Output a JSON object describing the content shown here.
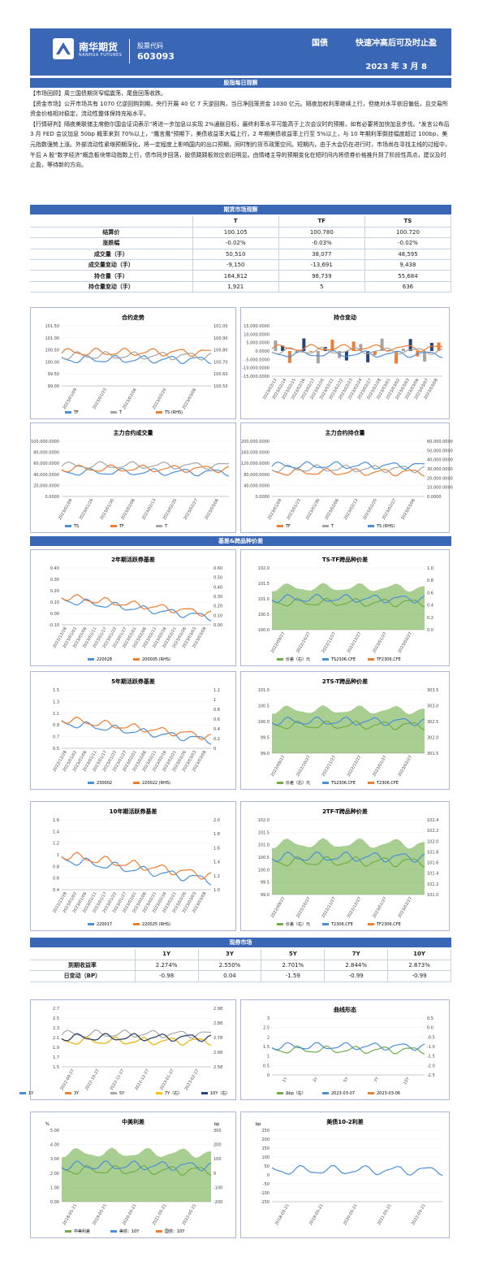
{
  "header": {
    "logo_name": "南华期货",
    "logo_en": "NANHUA FUTURES",
    "code_label": "股票代码",
    "code": "603093",
    "category": "国债",
    "title": "快速冲高后可及时止盈",
    "date": "2023 年 3 月 8"
  },
  "sections": {
    "daily": "股指每日观察",
    "futures": "期货市场观察",
    "basis": "基差&跨品种价差",
    "spot": "现券市场"
  },
  "paragraphs": [
    "【市场回顾】周三国债期货窄幅震荡，尾盘回落收跌。",
    "【资金市场】公开市场共有 1070 亿逆回购到期，央行开展 40 亿 7 天逆回购，当日净回笼资金 1030 亿元。隔夜加权利率继续上行，但绝对水平依旧偏低，且交易所资金价格相对稳定，流动性整体保持充裕水平。",
    "【行情研判】隔夜美联储主席鲍尔国会证词表示\"将进一步加息以实现 2%通胀目标，最终利率水平可能高于上次会议时的预期，如有必要将加快加息步伐。\"发言公布后 3 月 FED 会议加息 50bp 概率来到 70%以上，\"鹰言鹰\"预期下，美债收益率大幅上行，2 年期美债收益率上行至 5%以上，与 10 年期利率倒挂幅度超过 100bp，美元指数强势上涨。外部流动性紧缩预期深化，将一定程度上影响国内的出口预期，同时制约货币政策空间。短期内，由于大会仍在进行时，市场尚在寻找主线的过程中，午后 A 股\"数字经济\"概念板块带动指数上行，债市同步回落，股债跷跷板效应依旧明显。由情绪主导的预期变化在短时间内将债券价格推升到了阶段性高点，建议及时止盈，等待新的方向。"
  ],
  "futures_table": {
    "headers": [
      "",
      "T",
      "TF",
      "TS"
    ],
    "rows": [
      [
        "结算价",
        "100.105",
        "100.780",
        "100.720"
      ],
      [
        "涨跌幅",
        "-0.02%",
        "-0.03%",
        "-0.02%"
      ],
      [
        "成交量（手）",
        "50,510",
        "38,077",
        "48,595"
      ],
      [
        "成交量变动（手）",
        "-9,150",
        "-13,691",
        "9,438"
      ],
      [
        "持仓量（手）",
        "164,812",
        "98,739",
        "55,684"
      ],
      [
        "持仓量变动（手）",
        "1,921",
        "5",
        "636"
      ]
    ]
  },
  "charts": {
    "c1": {
      "title": "合约走势",
      "yl": [
        "101.50",
        "101.00",
        "100.50",
        "100.00",
        "99.50",
        "99.00"
      ],
      "yr": [
        "101.00",
        "100.90",
        "100.80",
        "100.70",
        "100.60",
        "100.50"
      ],
      "x": [
        "2023/01/09",
        "2023/01/23",
        "2023/02/06",
        "2023/02/20",
        "2023/03/06"
      ],
      "legend": [
        "TF",
        "T",
        "TS (RHS)"
      ]
    },
    "c2": {
      "title": "持仓变动",
      "yl": [
        "15,000.0000",
        "10,000.0000",
        "5,000.0000",
        "0.0000",
        "-5,000.0000",
        "-10,000.0000",
        "-15,000.0000"
      ],
      "x": [
        "2023/02/13",
        "2023/02/14",
        "2023/02/15",
        "2023/02/16",
        "2023/02/17",
        "2023/02/20",
        "2023/02/21",
        "2023/02/22",
        "2023/02/23",
        "2023/02/24",
        "2023/02/27",
        "2023/02/28",
        "2023/03/01",
        "2023/03/02",
        "2023/03/03",
        "2023/03/06",
        "2023/03/07",
        "2023/03/08"
      ]
    },
    "c3": {
      "title": "主力合约成交量",
      "yl": [
        "100,000.0000",
        "80,000.0000",
        "60,000.0000",
        "40,000.0000",
        "20,000.0000",
        "0.0000"
      ],
      "x": [
        "2023/01/09",
        "2023/01/16",
        "2023/01/30",
        "2023/02/06",
        "2023/02/13",
        "2023/02/20",
        "2023/02/27",
        "2023/03/06"
      ],
      "legend": [
        "TS",
        "TF",
        "T"
      ]
    },
    "c4": {
      "title": "主力合约持仓量",
      "yl": [
        "200,000.0000",
        "160,000.0000",
        "120,000.0000",
        "80,000.0000",
        "40,000.0000",
        "0.0000"
      ],
      "yr": [
        "60,000.0000",
        "50,000.0000",
        "40,000.0000",
        "30,000.0000",
        "20,000.0000",
        "10,000.0000",
        "0.0000"
      ],
      "x": [
        "2023/01/09",
        "2023/01/23",
        "2023/01/30",
        "2023/02/06",
        "2023/02/13",
        "2023/02/20",
        "2023/02/27",
        "2023/03/06"
      ],
      "legend": [
        "TF",
        "T",
        "TS (RHS)"
      ]
    },
    "c5": {
      "title": "2年期活跃券基差",
      "yl": [
        "0.40",
        "0.30",
        "0.20",
        "0.10",
        "0.00",
        "-0.10"
      ],
      "yr": [
        "0.60",
        "0.50",
        "0.40",
        "0.30",
        "0.20",
        "0.10",
        "0.00"
      ],
      "x": [
        "2022/12/28",
        "2023/01/02",
        "2023/01/06",
        "2023/01/11",
        "2023/01/17",
        "2023/01/22",
        "2023/01/27",
        "2023/02/01",
        "2023/02/06",
        "2023/02/11",
        "2023/02/16",
        "2023/02/21",
        "2023/02/26",
        "2023/03/03",
        "2023/03/08"
      ],
      "legend": [
        "220028",
        "200005 (RHS)"
      ]
    },
    "c6": {
      "title": "TS-TF跨品种价差",
      "yl": [
        "102.0",
        "101.5",
        "101.0",
        "100.5",
        "100.0"
      ],
      "yr": [
        "1.0",
        "0.8",
        "0.6",
        "0.4",
        "0.2",
        "0.0"
      ],
      "x": [
        "2022/09/27",
        "2022/10/27",
        "2022/11/27",
        "2022/12/27",
        "2023/01/27",
        "2023/02/27"
      ],
      "legend": [
        "价差（右）元",
        "TS2306.CFE",
        "TF2306.CFE"
      ]
    },
    "c7": {
      "title": "5年期活跃券基差",
      "yl": [
        "1.5",
        "1.3",
        "1.1",
        "0.9",
        "0.7",
        "0.5"
      ],
      "yr": [
        "1.2",
        "1",
        "0.8",
        "0.6",
        "0.4",
        "0.2",
        "0"
      ],
      "x": [
        "2022/12/28",
        "2023/01/02",
        "2023/01/06",
        "2023/01/11",
        "2023/01/17",
        "2023/01/22",
        "2023/01/27",
        "2023/02/01",
        "2023/02/06",
        "2023/02/11",
        "2023/02/16",
        "2023/02/21",
        "2023/02/26",
        "2023/03/03",
        "2023/03/08"
      ],
      "legend": [
        "230002",
        "220022 (RHS)"
      ]
    },
    "c8": {
      "title": "2TS-T跨品种价差",
      "yl": [
        "101.0",
        "100.5",
        "100.0",
        "99.5",
        "99.0"
      ],
      "yr": [
        "303.5",
        "303.0",
        "302.5",
        "302.0",
        "301.5"
      ],
      "x": [
        "2022/09/27",
        "2022/10/27",
        "2022/11/27",
        "2022/12/27",
        "2023/01/27",
        "2023/02/27"
      ],
      "legend": [
        "价差（右）元",
        "TS2306.CFE",
        "T2306.CFE"
      ]
    },
    "c9": {
      "title": "10年期活跃券基差",
      "yl": [
        "1.6",
        "1.4",
        "1.2",
        "1",
        "0.8",
        "0.6",
        "0.4"
      ],
      "yr": [
        "2.0",
        "1.8",
        "1.6",
        "1.4",
        "1.2",
        "1.0"
      ],
      "x": [
        "2022/12/28",
        "2023/01/02",
        "2023/01/06",
        "2023/01/11",
        "2023/01/17",
        "2023/01/22",
        "2023/01/27",
        "2023/02/01",
        "2023/02/06",
        "2023/02/11",
        "2023/02/16",
        "2023/02/21",
        "2023/02/26",
        "2023/03/03",
        "2023/03/08"
      ],
      "legend": [
        "220017",
        "220025 (RHS)"
      ]
    },
    "c10": {
      "title": "2TF-T跨品种价差",
      "yl": [
        "102.0",
        "101.5",
        "101.0",
        "100.5",
        "100.0",
        "99.5",
        "99.0"
      ],
      "yr": [
        "102.4",
        "102.2",
        "102.0",
        "101.8",
        "101.6",
        "101.4",
        "101.2",
        "101.0"
      ],
      "x": [
        "2022/09/27",
        "2022/10/27",
        "2022/11/27",
        "2022/12/27",
        "2023/01/27",
        "2023/02/27"
      ],
      "legend": [
        "价差（右）元",
        "T2306.CFE",
        "TF2306.CFE"
      ]
    },
    "c11": {
      "yl": [
        "2.7",
        "2.5",
        "2.3",
        "2.1",
        "1.9",
        "1.7",
        "1.5"
      ],
      "yr": [
        "2.98",
        "2.88",
        "2.78",
        "2.68",
        "2.58"
      ],
      "x": [
        "2022-09-27",
        "2022-10-27",
        "2022-11-27",
        "2022-12-27",
        "2023-01-27",
        "2023-02-27"
      ],
      "legend": [
        "1Y",
        "3Y",
        "5Y",
        "7Y（右）",
        "10Y（右）"
      ]
    },
    "c12": {
      "title": "曲线形态",
      "yl": [
        "3",
        "2.5",
        "2",
        "1.5",
        "1",
        "0.5",
        "0"
      ],
      "yr": [
        "0.5",
        "0.0",
        "-0.5",
        "-1.0",
        "-1.5",
        "-2.0",
        "-2.5"
      ],
      "x": [
        "1Y",
        "3Y",
        "5Y",
        "7Y",
        "10Y"
      ],
      "legend": [
        "Δbp（右）",
        "2023-03-07",
        "2023-03-06"
      ]
    },
    "c13": {
      "title": "中美利差",
      "unit_l": "%",
      "unit_r": "bp",
      "yl": [
        "5.00",
        "4.00",
        "3.00",
        "2.00",
        "1.00",
        "0.00"
      ],
      "yr": [
        "300",
        "200",
        "100",
        "0",
        "-100",
        "-200"
      ],
      "x": [
        "2018-05-21",
        "2019-05-21",
        "2020-05-21",
        "2021-05-21",
        "2022-05-21"
      ],
      "legend": [
        "中美利差",
        "美债：10Y",
        "国债：10Y"
      ]
    },
    "c14": {
      "title": "美债10-2利差",
      "unit_l": "bp",
      "yl": [
        "250",
        "200",
        "150",
        "100",
        "50",
        "0",
        "-50",
        "-100",
        "-150"
      ],
      "x": [
        "2018-05-21",
        "2019-05-21",
        "2020-05-21",
        "2021-05-21",
        "2022-05-21"
      ]
    }
  },
  "spot_table": {
    "headers": [
      "",
      "1Y",
      "3Y",
      "5Y",
      "7Y",
      "10Y"
    ],
    "rows": [
      [
        "到期收益率",
        "2.274%",
        "2.550%",
        "2.701%",
        "2.844%",
        "2.873%"
      ],
      [
        "日变动（BP）",
        "-0.98",
        "0.04",
        "-1.59",
        "-0.99",
        "-0.99"
      ]
    ]
  },
  "colors": {
    "brand": "#3a66b6",
    "blue": "#4a90d9",
    "orange": "#ed7d31",
    "gray": "#a5a5a5",
    "green": "#70ad47",
    "yellow": "#ffc000",
    "navy": "#264478"
  }
}
